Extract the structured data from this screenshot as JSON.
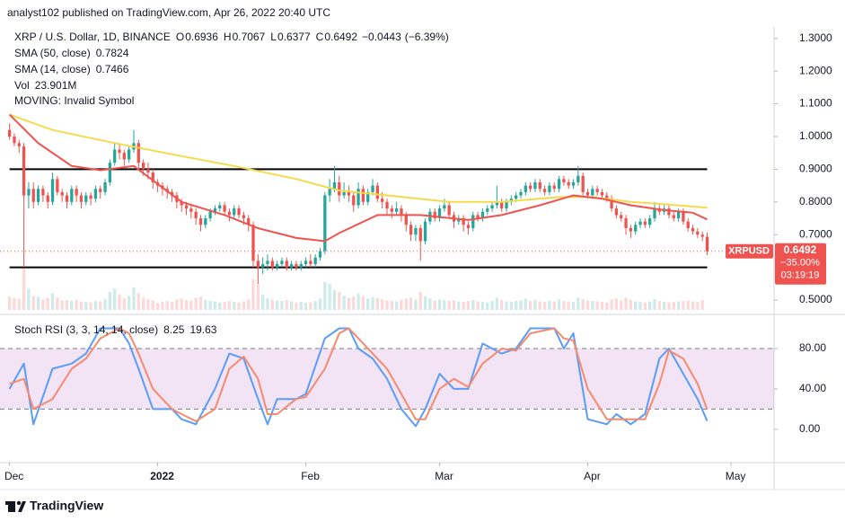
{
  "header": "analyst102 published on TradingView.com, Apr 26, 2022 20:40 UTC",
  "footer": "TradingView",
  "chart_data": [
    {
      "type": "candlestick",
      "title": "XRP / U.S. Dollar, 1D, BINANCE",
      "ohlc_letters": [
        "O",
        "H",
        "L",
        "C"
      ],
      "change": {
        "value": -0.0443,
        "label": "−0.0443"
      },
      "change_pct": {
        "value": -6.39,
        "label": "(−6.39%)"
      },
      "up_color": "#26a69a",
      "down_color": "#ef5350",
      "open": [
        1.02,
        1.0,
        0.98,
        0.97,
        0.82,
        0.84,
        0.8,
        0.84,
        0.82,
        0.8,
        0.87,
        0.83,
        0.82,
        0.8,
        0.84,
        0.82,
        0.8,
        0.82,
        0.81,
        0.84,
        0.83,
        0.86,
        0.92,
        0.96,
        0.95,
        0.93,
        0.96,
        0.98,
        0.92,
        0.9,
        0.89,
        0.86,
        0.85,
        0.84,
        0.83,
        0.82,
        0.8,
        0.79,
        0.78,
        0.77,
        0.75,
        0.73,
        0.75,
        0.77,
        0.78,
        0.79,
        0.77,
        0.76,
        0.78,
        0.76,
        0.75,
        0.73,
        0.62,
        0.6,
        0.61,
        0.62,
        0.6,
        0.61,
        0.62,
        0.6,
        0.61,
        0.6,
        0.61,
        0.62,
        0.61,
        0.63,
        0.65,
        0.82,
        0.84,
        0.86,
        0.82,
        0.83,
        0.82,
        0.79,
        0.84,
        0.8,
        0.83,
        0.85,
        0.81,
        0.8,
        0.78,
        0.77,
        0.78,
        0.76,
        0.73,
        0.7,
        0.72,
        0.68,
        0.74,
        0.77,
        0.75,
        0.78,
        0.79,
        0.76,
        0.74,
        0.75,
        0.73,
        0.72,
        0.76,
        0.75,
        0.77,
        0.78,
        0.79,
        0.8,
        0.78,
        0.8,
        0.81,
        0.82,
        0.83,
        0.85,
        0.84,
        0.86,
        0.84,
        0.83,
        0.85,
        0.84,
        0.87,
        0.86,
        0.85,
        0.86,
        0.88,
        0.83,
        0.82,
        0.84,
        0.83,
        0.82,
        0.81,
        0.78,
        0.76,
        0.75,
        0.72,
        0.71,
        0.73,
        0.74,
        0.73,
        0.75,
        0.78,
        0.77,
        0.78,
        0.76,
        0.75,
        0.77,
        0.74,
        0.72,
        0.71,
        0.7,
        0.6936
      ],
      "high": [
        1.04,
        1.01,
        0.99,
        0.98,
        0.86,
        0.86,
        0.85,
        0.85,
        0.83,
        0.89,
        0.88,
        0.84,
        0.83,
        0.85,
        0.85,
        0.83,
        0.83,
        0.83,
        0.85,
        0.85,
        0.87,
        0.93,
        0.98,
        0.98,
        0.96,
        0.97,
        1.02,
        0.99,
        0.93,
        0.92,
        0.9,
        0.87,
        0.86,
        0.85,
        0.84,
        0.83,
        0.81,
        0.8,
        0.79,
        0.78,
        0.76,
        0.76,
        0.78,
        0.79,
        0.8,
        0.8,
        0.78,
        0.79,
        0.79,
        0.77,
        0.76,
        0.74,
        0.64,
        0.63,
        0.64,
        0.63,
        0.62,
        0.63,
        0.63,
        0.62,
        0.62,
        0.62,
        0.63,
        0.64,
        0.64,
        0.66,
        0.83,
        0.87,
        0.91,
        0.88,
        0.86,
        0.85,
        0.83,
        0.86,
        0.85,
        0.84,
        0.87,
        0.86,
        0.83,
        0.81,
        0.79,
        0.8,
        0.79,
        0.77,
        0.74,
        0.73,
        0.73,
        0.75,
        0.78,
        0.78,
        0.79,
        0.81,
        0.8,
        0.77,
        0.76,
        0.76,
        0.74,
        0.77,
        0.77,
        0.78,
        0.79,
        0.8,
        0.85,
        0.81,
        0.81,
        0.82,
        0.83,
        0.84,
        0.86,
        0.86,
        0.87,
        0.87,
        0.85,
        0.86,
        0.86,
        0.88,
        0.88,
        0.87,
        0.87,
        0.91,
        0.89,
        0.84,
        0.85,
        0.85,
        0.84,
        0.83,
        0.82,
        0.79,
        0.77,
        0.76,
        0.73,
        0.74,
        0.75,
        0.75,
        0.76,
        0.8,
        0.79,
        0.79,
        0.79,
        0.77,
        0.78,
        0.78,
        0.75,
        0.73,
        0.72,
        0.71,
        0.7067
      ],
      "low": [
        0.99,
        0.97,
        0.95,
        0.6,
        0.78,
        0.78,
        0.79,
        0.8,
        0.78,
        0.79,
        0.82,
        0.8,
        0.78,
        0.79,
        0.8,
        0.78,
        0.79,
        0.79,
        0.8,
        0.81,
        0.82,
        0.85,
        0.91,
        0.93,
        0.91,
        0.92,
        0.95,
        0.9,
        0.88,
        0.87,
        0.84,
        0.83,
        0.82,
        0.81,
        0.8,
        0.78,
        0.77,
        0.76,
        0.75,
        0.73,
        0.71,
        0.72,
        0.74,
        0.76,
        0.77,
        0.76,
        0.74,
        0.75,
        0.75,
        0.73,
        0.71,
        0.6,
        0.55,
        0.58,
        0.59,
        0.59,
        0.59,
        0.6,
        0.59,
        0.59,
        0.59,
        0.59,
        0.6,
        0.6,
        0.6,
        0.62,
        0.64,
        0.8,
        0.83,
        0.8,
        0.81,
        0.8,
        0.77,
        0.78,
        0.79,
        0.79,
        0.82,
        0.8,
        0.78,
        0.76,
        0.75,
        0.76,
        0.74,
        0.71,
        0.68,
        0.68,
        0.62,
        0.67,
        0.73,
        0.74,
        0.74,
        0.77,
        0.75,
        0.72,
        0.73,
        0.71,
        0.7,
        0.71,
        0.74,
        0.74,
        0.76,
        0.77,
        0.78,
        0.77,
        0.77,
        0.79,
        0.8,
        0.81,
        0.82,
        0.83,
        0.83,
        0.83,
        0.82,
        0.82,
        0.83,
        0.83,
        0.85,
        0.84,
        0.84,
        0.85,
        0.82,
        0.81,
        0.81,
        0.82,
        0.81,
        0.8,
        0.77,
        0.75,
        0.74,
        0.7,
        0.69,
        0.7,
        0.72,
        0.72,
        0.72,
        0.74,
        0.76,
        0.76,
        0.75,
        0.74,
        0.74,
        0.73,
        0.71,
        0.7,
        0.69,
        0.68,
        0.6377
      ],
      "close": [
        1.0,
        0.98,
        0.97,
        0.82,
        0.84,
        0.8,
        0.84,
        0.82,
        0.8,
        0.87,
        0.83,
        0.82,
        0.8,
        0.84,
        0.82,
        0.8,
        0.82,
        0.81,
        0.84,
        0.83,
        0.86,
        0.92,
        0.96,
        0.95,
        0.93,
        0.96,
        0.98,
        0.92,
        0.9,
        0.89,
        0.86,
        0.85,
        0.84,
        0.83,
        0.82,
        0.8,
        0.79,
        0.78,
        0.77,
        0.75,
        0.73,
        0.75,
        0.77,
        0.78,
        0.79,
        0.77,
        0.76,
        0.78,
        0.76,
        0.75,
        0.73,
        0.62,
        0.6,
        0.61,
        0.62,
        0.6,
        0.61,
        0.62,
        0.6,
        0.61,
        0.6,
        0.61,
        0.62,
        0.61,
        0.63,
        0.65,
        0.82,
        0.84,
        0.86,
        0.82,
        0.83,
        0.82,
        0.79,
        0.84,
        0.8,
        0.83,
        0.85,
        0.81,
        0.8,
        0.78,
        0.77,
        0.78,
        0.76,
        0.73,
        0.7,
        0.72,
        0.68,
        0.74,
        0.77,
        0.75,
        0.78,
        0.79,
        0.76,
        0.74,
        0.75,
        0.73,
        0.72,
        0.76,
        0.75,
        0.77,
        0.78,
        0.79,
        0.8,
        0.78,
        0.8,
        0.81,
        0.82,
        0.83,
        0.85,
        0.84,
        0.86,
        0.84,
        0.83,
        0.85,
        0.84,
        0.87,
        0.86,
        0.85,
        0.86,
        0.88,
        0.83,
        0.82,
        0.84,
        0.83,
        0.82,
        0.81,
        0.78,
        0.76,
        0.75,
        0.72,
        0.71,
        0.73,
        0.74,
        0.73,
        0.75,
        0.78,
        0.77,
        0.78,
        0.76,
        0.75,
        0.77,
        0.74,
        0.72,
        0.71,
        0.7,
        0.6936,
        0.6492
      ],
      "volume": {
        "name": "Vol",
        "legend_label": "23.901M",
        "ylim": [
          0,
          60000
        ],
        "values": [
          2800,
          2500,
          2300,
          9000,
          4500,
          3000,
          2800,
          2200,
          2500,
          3500,
          2600,
          2000,
          2100,
          1900,
          2200,
          1800,
          1700,
          1600,
          1900,
          1800,
          2300,
          3800,
          4500,
          3200,
          2500,
          3000,
          4800,
          3500,
          2600,
          2200,
          2000,
          1500,
          1800,
          1900,
          1700,
          2200,
          2400,
          2100,
          2000,
          2600,
          2800,
          2100,
          1900,
          1800,
          1600,
          1700,
          1900,
          1700,
          1600,
          1800,
          2200,
          6500,
          5800,
          3200,
          2500,
          2200,
          2000,
          1900,
          2100,
          1800,
          1600,
          1700,
          1500,
          1600,
          1900,
          2400,
          6000,
          5500,
          4200,
          3800,
          3000,
          2600,
          2800,
          3500,
          2900,
          2400,
          2700,
          2500,
          2200,
          2000,
          1900,
          1800,
          2100,
          2400,
          2600,
          2200,
          3800,
          2900,
          2400,
          2000,
          2200,
          2100,
          1900,
          2000,
          1800,
          1700,
          1900,
          2100,
          1800,
          1700,
          1600,
          1900,
          2600,
          2100,
          1800,
          1700,
          1900,
          2000,
          2400,
          1900,
          2100,
          1800,
          1700,
          1900,
          1800,
          2200,
          1900,
          1800,
          1700,
          2600,
          2300,
          2000,
          1900,
          1800,
          1700,
          1600,
          2200,
          2400,
          2000,
          2600,
          2100,
          1800,
          1700,
          1600,
          1800,
          2300,
          1900,
          1700,
          1600,
          1700,
          1800,
          1900,
          2000,
          1800,
          1700,
          2100,
          23.901
        ]
      },
      "series": [
        {
          "name": "SMA (50, close)",
          "color": "#f7d94c",
          "label_color": "#e0b800",
          "x": [
            0,
            9,
            22,
            36,
            47,
            60,
            69,
            79,
            92,
            103,
            115,
            122,
            130,
            137,
            146
          ],
          "values": [
            1.067,
            1.02,
            0.98,
            0.94,
            0.91,
            0.87,
            0.835,
            0.82,
            0.8,
            0.8,
            0.815,
            0.815,
            0.8,
            0.793,
            0.7824
          ]
        },
        {
          "name": "SMA (14, close)",
          "color": "#ef5350",
          "label_color": "#ef5350",
          "x": [
            0,
            6,
            13,
            19,
            26,
            36,
            45,
            52,
            60,
            66,
            69,
            77,
            86,
            96,
            103,
            111,
            118,
            124,
            130,
            137,
            143,
            146
          ],
          "values": [
            1.067,
            0.98,
            0.91,
            0.897,
            0.91,
            0.8,
            0.76,
            0.72,
            0.69,
            0.68,
            0.705,
            0.76,
            0.76,
            0.745,
            0.76,
            0.79,
            0.82,
            0.81,
            0.79,
            0.775,
            0.767,
            0.7466
          ]
        }
      ],
      "extra_indicator": "MOVING: Invalid Symbol",
      "hlines": [
        0.9,
        0.6
      ],
      "price_label": {
        "symbol": "XRPUSD",
        "change": "−35.00%",
        "countdown": "03:19:19"
      },
      "xlim": [
        -2,
        160
      ],
      "xticks": [
        {
          "value": 0,
          "label": "Dec"
        },
        {
          "value": 31,
          "label": "2022"
        },
        {
          "value": 62,
          "label": "Feb"
        },
        {
          "value": 90,
          "label": "Mar"
        },
        {
          "value": 121,
          "label": "Apr"
        },
        {
          "value": 151,
          "label": "May"
        }
      ],
      "ylim": [
        0.47,
        1.335
      ],
      "yticks": [
        {
          "value": 1.3,
          "label": "1.3000"
        },
        {
          "value": 1.2,
          "label": "1.2000"
        },
        {
          "value": 1.1,
          "label": "1.1000"
        },
        {
          "value": 1.0,
          "label": "1.0000"
        },
        {
          "value": 0.9,
          "label": "0.9000"
        },
        {
          "value": 0.8,
          "label": "0.8000"
        },
        {
          "value": 0.7,
          "label": "0.7000"
        },
        {
          "value": 0.5,
          "label": "0.5000"
        }
      ]
    },
    {
      "type": "line",
      "title": "Stoch RSI (3, 3, 14, 14, close)",
      "x": [
        0,
        3,
        5,
        9,
        13,
        16,
        19,
        23,
        25,
        27,
        30,
        34,
        36,
        39,
        43,
        46,
        49,
        52,
        54,
        56,
        60,
        62,
        66,
        69,
        71,
        73,
        76,
        79,
        82,
        85,
        87,
        90,
        93,
        96,
        99,
        103,
        106,
        109,
        114,
        116,
        118,
        121,
        125,
        127,
        130,
        133,
        136,
        138,
        141,
        144,
        146
      ],
      "series": [
        {
          "color": "#5b9cf6",
          "values": [
            40,
            65,
            5,
            60,
            65,
            75,
            100,
            100,
            85,
            60,
            20,
            20,
            10,
            5,
            40,
            75,
            70,
            30,
            5,
            30,
            30,
            35,
            90,
            100,
            100,
            80,
            70,
            50,
            20,
            3,
            20,
            55,
            40,
            40,
            85,
            75,
            80,
            100,
            100,
            80,
            95,
            10,
            5,
            15,
            5,
            15,
            70,
            80,
            55,
            30,
            8.25
          ]
        },
        {
          "color": "#f48b6e",
          "values": [
            45,
            50,
            20,
            30,
            60,
            70,
            90,
            100,
            95,
            75,
            40,
            20,
            15,
            8,
            20,
            60,
            72,
            50,
            15,
            15,
            30,
            32,
            60,
            95,
            100,
            90,
            75,
            60,
            35,
            10,
            10,
            40,
            50,
            42,
            65,
            80,
            78,
            95,
            100,
            90,
            88,
            40,
            10,
            10,
            10,
            10,
            45,
            78,
            70,
            45,
            19.63
          ]
        }
      ],
      "band": [
        20,
        80
      ],
      "band_color": "rgba(156,39,176,0.13)",
      "xlim": [
        -2,
        160
      ],
      "ylim": [
        -33,
        112
      ],
      "yticks": [
        {
          "value": 80,
          "label": "80.00"
        },
        {
          "value": 40,
          "label": "40.00"
        },
        {
          "value": 0,
          "label": "0.00"
        }
      ]
    }
  ]
}
